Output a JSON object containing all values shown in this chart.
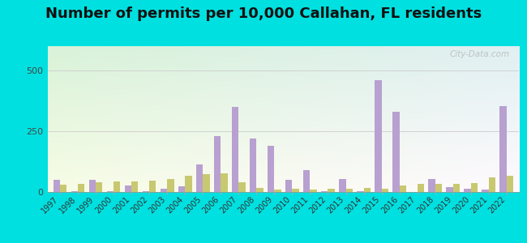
{
  "title": "Number of permits per 10,000 Callahan, FL residents",
  "years": [
    1997,
    1998,
    1999,
    2000,
    2001,
    2002,
    2003,
    2004,
    2005,
    2006,
    2007,
    2008,
    2009,
    2010,
    2011,
    2012,
    2013,
    2014,
    2015,
    2016,
    2017,
    2018,
    2019,
    2020,
    2021,
    2022
  ],
  "callahan": [
    50,
    5,
    50,
    5,
    28,
    5,
    15,
    25,
    115,
    230,
    350,
    220,
    190,
    50,
    90,
    5,
    55,
    5,
    460,
    330,
    0,
    55,
    20,
    15,
    10,
    355
  ],
  "florida": [
    30,
    35,
    40,
    42,
    42,
    48,
    55,
    68,
    75,
    78,
    40,
    18,
    10,
    12,
    10,
    12,
    15,
    18,
    15,
    28,
    32,
    35,
    35,
    38,
    60,
    68
  ],
  "callahan_color": "#b8a0d0",
  "florida_color": "#c8c870",
  "bg_outer": "#00e0e0",
  "ylim": [
    0,
    600
  ],
  "yticks": [
    0,
    250,
    500
  ],
  "title_fontsize": 13,
  "watermark": "City-Data.com"
}
